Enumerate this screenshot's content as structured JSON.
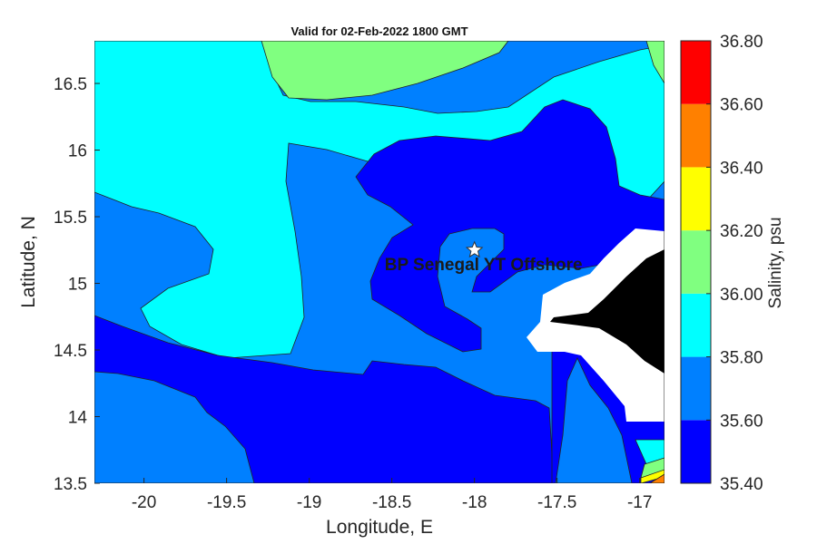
{
  "title": "Valid for 02-Feb-2022 1800 GMT",
  "xlabel": "Longitude, E",
  "ylabel": "Latitude, N",
  "colorbar_label": "Salinity, psu",
  "annotation": {
    "label": "BP Senegal YT Offshore",
    "lon": -18.0,
    "lat": 15.25,
    "marker": "star-icon"
  },
  "x_ticks": [
    "-20",
    "-19.5",
    "-19",
    "-18.5",
    "-18",
    "-17.5",
    "-17"
  ],
  "y_ticks": [
    "16.5",
    "16",
    "15.5",
    "15",
    "14.5",
    "14",
    "13.5"
  ],
  "colorbar_ticks": [
    "36.80",
    "36.60",
    "36.40",
    "36.20",
    "36.00",
    "35.80",
    "35.60",
    "35.40"
  ],
  "colors": {
    "35.40-35.60": "#0000ff",
    "35.60-35.80": "#0080ff",
    "35.80-36.00": "#00ffff",
    "36.00-36.20": "#80ff80",
    "36.20-36.40": "#ffff00",
    "36.40-36.60": "#ff8000",
    "36.60-36.80": "#ff0000",
    "land": "#000000",
    "no_data": "#ffffff"
  },
  "chart_data": {
    "type": "heatmap",
    "title": "Valid for 02-Feb-2022 1800 GMT",
    "xlabel": "Longitude, E",
    "ylabel": "Latitude, N",
    "xlim": [
      -20.3,
      -16.85
    ],
    "ylim": [
      13.5,
      16.82
    ],
    "colorbar": {
      "label": "Salinity, psu",
      "range": [
        35.4,
        36.8
      ],
      "levels": [
        35.4,
        35.6,
        35.8,
        36.0,
        36.2,
        36.4,
        36.6,
        36.8
      ],
      "colors": [
        "#0000ff",
        "#0080ff",
        "#00ffff",
        "#80ff80",
        "#ffff00",
        "#ff8000",
        "#ff0000"
      ]
    },
    "regions": [
      {
        "range": "35.80-36.00",
        "description": "western and northern waters"
      },
      {
        "range": "36.00-36.20",
        "description": "northern patch near 16.7N"
      },
      {
        "range": "35.60-35.80",
        "description": "mid band and southwest"
      },
      {
        "range": "35.40-35.60",
        "description": "around the marked site and south"
      }
    ]
  }
}
